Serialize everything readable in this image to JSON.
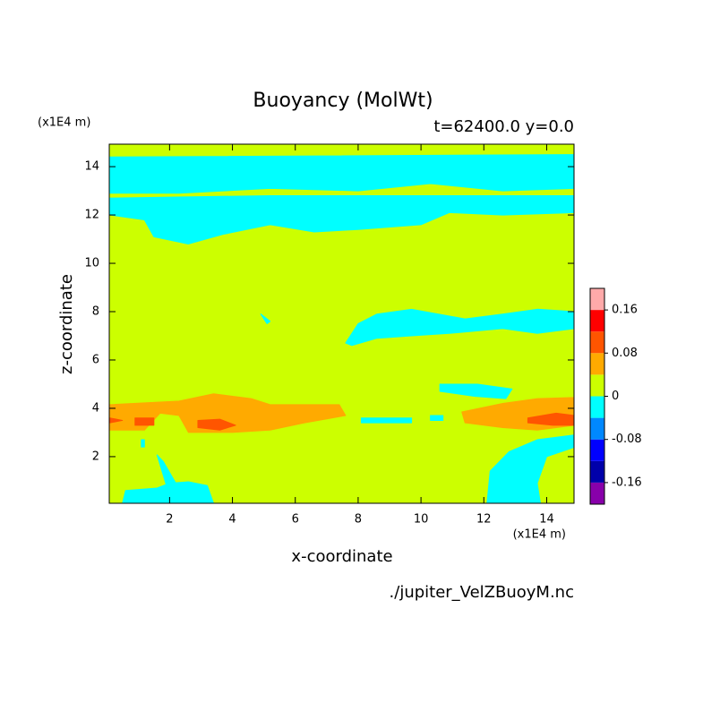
{
  "chart_data": {
    "type": "contour",
    "title": "Buoyancy (MolWt)",
    "subtitle": "t=62400.0 y=0.0",
    "x_label": "x-coordinate",
    "y_label": "z-coordinate",
    "x_unit": "(x1E4 m)",
    "y_unit": "(x1E4 m)",
    "footer": "./jupiter_VelZBuoyM.nc",
    "xlim": [
      0.08,
      14.87
    ],
    "ylim": [
      0.07,
      14.93
    ],
    "xticks": [
      2,
      4,
      6,
      8,
      10,
      12,
      14
    ],
    "yticks": [
      2,
      4,
      6,
      8,
      10,
      12,
      14
    ],
    "levels": [
      -0.16,
      -0.12,
      -0.08,
      -0.04,
      0,
      0.04,
      0.08,
      0.12,
      0.16
    ],
    "colors": [
      "#8800aa",
      "#0000aa",
      "#0000ff",
      "#0088ff",
      "#00ffff",
      "#ccff00",
      "#ffaa00",
      "#ff5500",
      "#ff0000",
      "#ffaaaa"
    ],
    "colorbar_ticks": [
      0.16,
      0.08,
      0,
      -0.08,
      -0.16
    ],
    "background_value": 0,
    "regions": [
      {
        "value": -0.04,
        "x": [
          0.1,
          14.9,
          14.9,
          12.6,
          10.3,
          8.0,
          5.2,
          2.3,
          0.1
        ],
        "z": [
          14.4,
          14.5,
          13.1,
          13.0,
          13.3,
          13.0,
          13.1,
          12.9,
          12.9
        ]
      },
      {
        "value": -0.04,
        "x": [
          0.1,
          5.2,
          14.9,
          14.9,
          12.6,
          10.9,
          10.0,
          8.0,
          6.6,
          5.2,
          3.7,
          2.6,
          1.5,
          1.2,
          0.1
        ],
        "z": [
          12.7,
          12.8,
          12.8,
          12.1,
          12.0,
          12.1,
          11.6,
          11.4,
          11.3,
          11.6,
          11.2,
          10.8,
          11.1,
          11.8,
          12.0
        ]
      },
      {
        "value": -0.04,
        "x": [
          7.6,
          8.0,
          8.6,
          9.7,
          11.4,
          12.6,
          13.7,
          14.9,
          14.9,
          13.7,
          12.6,
          10.9,
          9.7,
          8.6,
          7.8
        ],
        "z": [
          6.7,
          7.5,
          7.9,
          8.1,
          7.7,
          7.9,
          8.1,
          8.0,
          7.3,
          7.1,
          7.3,
          7.1,
          7.0,
          6.9,
          6.6
        ]
      },
      {
        "value": -0.04,
        "x": [
          10.6,
          11.8,
          12.9,
          12.7,
          11.7,
          10.6
        ],
        "z": [
          5.0,
          5.0,
          4.8,
          4.4,
          4.5,
          4.7
        ]
      },
      {
        "value": -0.04,
        "x": [
          4.9,
          5.2,
          5.1
        ],
        "z": [
          7.9,
          7.6,
          7.5
        ]
      },
      {
        "value": 0.04,
        "x": [
          0.1,
          2.3,
          3.4,
          4.6,
          5.2,
          7.4,
          7.6,
          6.3,
          5.2,
          4.0,
          2.6,
          2.3,
          1.7,
          1.2,
          0.1
        ],
        "z": [
          4.15,
          4.3,
          4.6,
          4.4,
          4.15,
          4.15,
          3.7,
          3.4,
          3.1,
          3.0,
          3.0,
          3.7,
          3.8,
          3.1,
          3.1
        ]
      },
      {
        "value": 0.04,
        "x": [
          11.3,
          12.6,
          13.7,
          14.9,
          14.9,
          13.7,
          12.6,
          11.4
        ],
        "z": [
          3.85,
          4.2,
          4.4,
          4.45,
          3.3,
          3.1,
          3.2,
          3.4
        ]
      },
      {
        "value": 0.08,
        "x": [
          2.9,
          3.6,
          4.1,
          3.6,
          2.9
        ],
        "z": [
          3.5,
          3.55,
          3.3,
          3.1,
          3.2
        ]
      },
      {
        "value": 0.08,
        "x": [
          0.9,
          1.5,
          1.5,
          0.9
        ],
        "z": [
          3.6,
          3.6,
          3.3,
          3.3
        ]
      },
      {
        "value": 0.08,
        "x": [
          0.1,
          0.5,
          0.1
        ],
        "z": [
          3.6,
          3.5,
          3.4
        ]
      },
      {
        "value": 0.08,
        "x": [
          13.4,
          14.3,
          14.9,
          14.9,
          14.2,
          13.4
        ],
        "z": [
          3.6,
          3.8,
          3.7,
          3.3,
          3.3,
          3.4
        ]
      },
      {
        "value": -0.04,
        "x": [
          8.1,
          9.7,
          9.7,
          8.1
        ],
        "z": [
          3.6,
          3.6,
          3.4,
          3.4
        ]
      },
      {
        "value": -0.04,
        "x": [
          10.3,
          10.7,
          10.7,
          10.3
        ],
        "z": [
          3.7,
          3.7,
          3.5,
          3.5
        ]
      },
      {
        "value": -0.04,
        "x": [
          0.5,
          0.6,
          1.6,
          2.0,
          2.6,
          3.2,
          3.4
        ],
        "z": [
          0.07,
          0.6,
          0.7,
          0.9,
          0.96,
          0.8,
          0.07
        ]
      },
      {
        "value": -0.04,
        "x": [
          1.6,
          1.8,
          2.2,
          1.9
        ],
        "z": [
          2.07,
          1.8,
          0.9,
          0.8
        ]
      },
      {
        "value": -0.04,
        "x": [
          1.1,
          1.2,
          1.2,
          1.1
        ],
        "z": [
          2.7,
          2.7,
          2.4,
          2.4
        ]
      },
      {
        "value": -0.04,
        "x": [
          12.1,
          12.2,
          12.8,
          13.7,
          14.9,
          14.9,
          14.0,
          13.7,
          13.8
        ],
        "z": [
          0.07,
          1.4,
          2.2,
          2.7,
          2.9,
          2.4,
          2.0,
          0.9,
          0.07
        ]
      }
    ]
  }
}
